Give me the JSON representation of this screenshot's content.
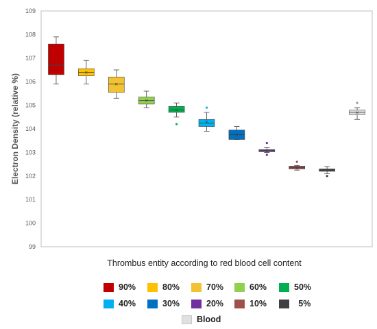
{
  "chart_data": {
    "type": "box",
    "title": "",
    "xlabel": "Thrombus entity according to red blood cell content",
    "ylabel": "Electron Density (relative %)",
    "ylim": [
      99,
      109
    ],
    "yticks": [
      99,
      100,
      101,
      102,
      103,
      104,
      105,
      106,
      107,
      108,
      109
    ],
    "grid": false,
    "legend_position": "bottom",
    "series": [
      {
        "name": "90%",
        "color": "#c00000",
        "whisker_low": 105.9,
        "q1": 106.3,
        "median": 106.7,
        "mean": 106.9,
        "q3": 107.6,
        "whisker_high": 107.9,
        "outliers": []
      },
      {
        "name": "80%",
        "color": "#ffc000",
        "whisker_low": 105.9,
        "q1": 106.25,
        "median": 106.4,
        "mean": 106.4,
        "q3": 106.55,
        "whisker_high": 106.9,
        "outliers": []
      },
      {
        "name": "70%",
        "color": "#f2c230",
        "whisker_low": 105.3,
        "q1": 105.55,
        "median": 105.9,
        "mean": 105.9,
        "q3": 106.2,
        "whisker_high": 106.5,
        "outliers": []
      },
      {
        "name": "60%",
        "color": "#92d050",
        "whisker_low": 104.9,
        "q1": 105.05,
        "median": 105.2,
        "mean": 105.2,
        "q3": 105.35,
        "whisker_high": 105.6,
        "outliers": []
      },
      {
        "name": "50%",
        "color": "#00b050",
        "whisker_low": 104.5,
        "q1": 104.7,
        "median": 104.8,
        "mean": 104.8,
        "q3": 104.95,
        "whisker_high": 105.1,
        "outliers": [
          104.2
        ]
      },
      {
        "name": "40%",
        "color": "#00b0f0",
        "whisker_low": 103.9,
        "q1": 104.1,
        "median": 104.25,
        "mean": 104.3,
        "q3": 104.4,
        "whisker_high": 104.7,
        "outliers": [
          104.9
        ]
      },
      {
        "name": "30%",
        "color": "#0070c0",
        "whisker_low": 103.55,
        "q1": 103.55,
        "median": 103.75,
        "mean": 103.75,
        "q3": 103.95,
        "whisker_high": 104.1,
        "outliers": []
      },
      {
        "name": "20%",
        "color": "#7030a0",
        "whisker_low": 103.0,
        "q1": 103.03,
        "median": 103.07,
        "mean": 103.07,
        "q3": 103.12,
        "whisker_high": 103.2,
        "outliers": [
          102.9,
          103.4
        ]
      },
      {
        "name": "10%",
        "color": "#a0504a",
        "whisker_low": 102.25,
        "q1": 102.3,
        "median": 102.35,
        "mean": 102.35,
        "q3": 102.42,
        "whisker_high": 102.45,
        "outliers": [
          102.6
        ]
      },
      {
        "name": "5%",
        "color": "#404040",
        "whisker_low": 102.1,
        "q1": 102.2,
        "median": 102.25,
        "mean": 102.25,
        "q3": 102.3,
        "whisker_high": 102.4,
        "outliers": [
          102.0
        ]
      },
      {
        "name": "Blood",
        "color": "#e0e0e0",
        "whisker_low": 104.4,
        "q1": 104.6,
        "median": 104.7,
        "mean": 104.7,
        "q3": 104.8,
        "whisker_high": 104.9,
        "outliers": [
          105.1
        ]
      }
    ]
  }
}
